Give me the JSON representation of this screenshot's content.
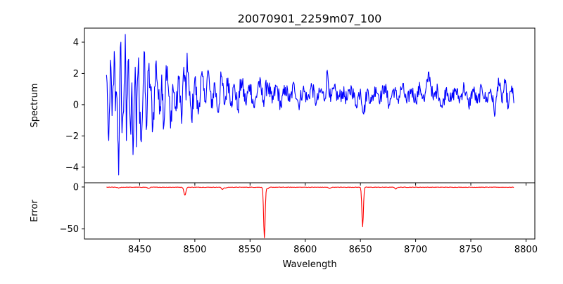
{
  "chart_data": [
    {
      "type": "line",
      "title": "20070901_2259m07_100",
      "xlabel": "",
      "ylabel": "Spectrum",
      "xlim": [
        8400,
        8808
      ],
      "ylim": [
        -5.0,
        4.9
      ],
      "yticks": [
        4,
        2,
        0,
        -2,
        -4
      ],
      "ytick_labels": [
        "4",
        "2",
        "0",
        "−2",
        "−4"
      ],
      "xticks": [
        8450,
        8500,
        8550,
        8600,
        8650,
        8700,
        8750,
        8800
      ],
      "grid": false,
      "color": "#0000ff",
      "series": [
        {
          "name": "Spectrum",
          "x_start": 8420,
          "x_end": 8789,
          "anchors": [
            [
              8420,
              1.9
            ],
            [
              8421,
              -0.1
            ],
            [
              8422,
              -2.3
            ],
            [
              8423,
              0.2
            ],
            [
              8424,
              2.4
            ],
            [
              8425,
              -0.7
            ],
            [
              8426,
              1.2
            ],
            [
              8427,
              3.4
            ],
            [
              8428,
              -0.4
            ],
            [
              8429,
              0.8
            ],
            [
              8430,
              -2.0
            ],
            [
              8431,
              -4.5
            ],
            [
              8432,
              1.6
            ],
            [
              8433,
              4.0
            ],
            [
              8434,
              -1.8
            ],
            [
              8435,
              -0.6
            ],
            [
              8436,
              1.3
            ],
            [
              8437,
              4.5
            ],
            [
              8438,
              -2.3
            ],
            [
              8439,
              0.7
            ],
            [
              8440,
              2.9
            ],
            [
              8441,
              -0.4
            ],
            [
              8442,
              -1.9
            ],
            [
              8443,
              1.4
            ],
            [
              8444,
              -3.2
            ],
            [
              8445,
              0.3
            ],
            [
              8446,
              2.4
            ],
            [
              8447,
              -2.7
            ],
            [
              8448,
              1.5
            ],
            [
              8449,
              3.0
            ],
            [
              8450,
              -1.2
            ],
            [
              8452,
              -1.6
            ],
            [
              8454,
              3.4
            ],
            [
              8456,
              -1.6
            ],
            [
              8458,
              2.2
            ],
            [
              8460,
              0.9
            ],
            [
              8462,
              -1.4
            ],
            [
              8465,
              2.8
            ],
            [
              8468,
              -0.6
            ],
            [
              8470,
              1.9
            ],
            [
              8472,
              -1.3
            ],
            [
              8474,
              2.5
            ],
            [
              8476,
              1.1
            ],
            [
              8478,
              -1.5
            ],
            [
              8480,
              1.3
            ],
            [
              8483,
              -0.4
            ],
            [
              8486,
              1.8
            ],
            [
              8488,
              -1.2
            ],
            [
              8490,
              2.4
            ],
            [
              8492,
              0.3
            ],
            [
              8493,
              3.3
            ],
            [
              8495,
              0.6
            ],
            [
              8497,
              -0.9
            ],
            [
              8500,
              1.7
            ],
            [
              8503,
              -0.6
            ],
            [
              8506,
              1.9
            ],
            [
              8509,
              0.2
            ],
            [
              8512,
              2.2
            ],
            [
              8515,
              -0.2
            ],
            [
              8518,
              1.4
            ],
            [
              8521,
              -0.5
            ],
            [
              8524,
              1.8
            ],
            [
              8527,
              0.0
            ],
            [
              8530,
              1.7
            ],
            [
              8533,
              0.2
            ],
            [
              8536,
              1.2
            ],
            [
              8539,
              -0.3
            ],
            [
              8542,
              1.6
            ],
            [
              8546,
              0.1
            ],
            [
              8550,
              1.3
            ],
            [
              8554,
              -0.2
            ],
            [
              8558,
              1.5
            ],
            [
              8562,
              0.3
            ],
            [
              8566,
              1.4
            ],
            [
              8570,
              0.1
            ],
            [
              8574,
              1.2
            ],
            [
              8578,
              -0.1
            ],
            [
              8582,
              1.1
            ],
            [
              8586,
              0.2
            ],
            [
              8590,
              1.3
            ],
            [
              8594,
              0.0
            ],
            [
              8598,
              1.0
            ],
            [
              8602,
              0.3
            ],
            [
              8606,
              1.2
            ],
            [
              8610,
              0.1
            ],
            [
              8614,
              0.9
            ],
            [
              8618,
              0.4
            ],
            [
              8620,
              2.2
            ],
            [
              8623,
              0.2
            ],
            [
              8626,
              1.0
            ],
            [
              8630,
              0.4
            ],
            [
              8634,
              0.8
            ],
            [
              8638,
              0.3
            ],
            [
              8642,
              1.1
            ],
            [
              8646,
              0.0
            ],
            [
              8650,
              1.0
            ],
            [
              8653,
              -0.6
            ],
            [
              8656,
              0.9
            ],
            [
              8660,
              0.2
            ],
            [
              8664,
              1.1
            ],
            [
              8668,
              0.4
            ],
            [
              8672,
              1.2
            ],
            [
              8676,
              0.0
            ],
            [
              8680,
              1.0
            ],
            [
              8684,
              0.3
            ],
            [
              8688,
              1.2
            ],
            [
              8692,
              0.1
            ],
            [
              8696,
              1.0
            ],
            [
              8700,
              0.3
            ],
            [
              8704,
              1.1
            ],
            [
              8708,
              0.2
            ],
            [
              8712,
              2.1
            ],
            [
              8716,
              0.3
            ],
            [
              8720,
              1.0
            ],
            [
              8724,
              -0.2
            ],
            [
              8728,
              1.1
            ],
            [
              8732,
              0.2
            ],
            [
              8736,
              1.0
            ],
            [
              8740,
              0.3
            ],
            [
              8744,
              1.2
            ],
            [
              8748,
              -0.1
            ],
            [
              8752,
              1.0
            ],
            [
              8756,
              0.1
            ],
            [
              8760,
              1.1
            ],
            [
              8764,
              0.2
            ],
            [
              8768,
              1.0
            ],
            [
              8772,
              -0.6
            ],
            [
              8775,
              1.7
            ],
            [
              8778,
              0.2
            ],
            [
              8781,
              1.4
            ],
            [
              8784,
              -0.2
            ],
            [
              8787,
              1.2
            ],
            [
              8789,
              0.1
            ]
          ],
          "noise_amplitude_edges": [
            [
              8420,
              1.6
            ],
            [
              8460,
              1.2
            ],
            [
              8500,
              0.8
            ],
            [
              8600,
              0.5
            ],
            [
              8789,
              0.45
            ]
          ]
        }
      ]
    },
    {
      "type": "line",
      "title": "",
      "xlabel": "Wavelength",
      "ylabel": "Error",
      "xlim": [
        8400,
        8808
      ],
      "ylim": [
        -62,
        5
      ],
      "yticks": [
        0,
        -50
      ],
      "ytick_labels": [
        "0",
        "−50"
      ],
      "xticks": [
        8450,
        8500,
        8550,
        8600,
        8650,
        8700,
        8750,
        8800
      ],
      "grid": false,
      "color": "#ff0000",
      "series": [
        {
          "name": "Error",
          "x_start": 8420,
          "x_end": 8789,
          "baseline": -0.3,
          "dips": [
            [
              8431,
              -1.0
            ],
            [
              8458,
              -1.5
            ],
            [
              8491,
              -9.5
            ],
            [
              8525,
              -2.5
            ],
            [
              8528,
              -1.0
            ],
            [
              8563,
              -60.0
            ],
            [
              8566,
              -2.0
            ],
            [
              8622,
              -1.5
            ],
            [
              8652,
              -47.0
            ],
            [
              8682,
              -2.0
            ]
          ]
        }
      ]
    }
  ]
}
